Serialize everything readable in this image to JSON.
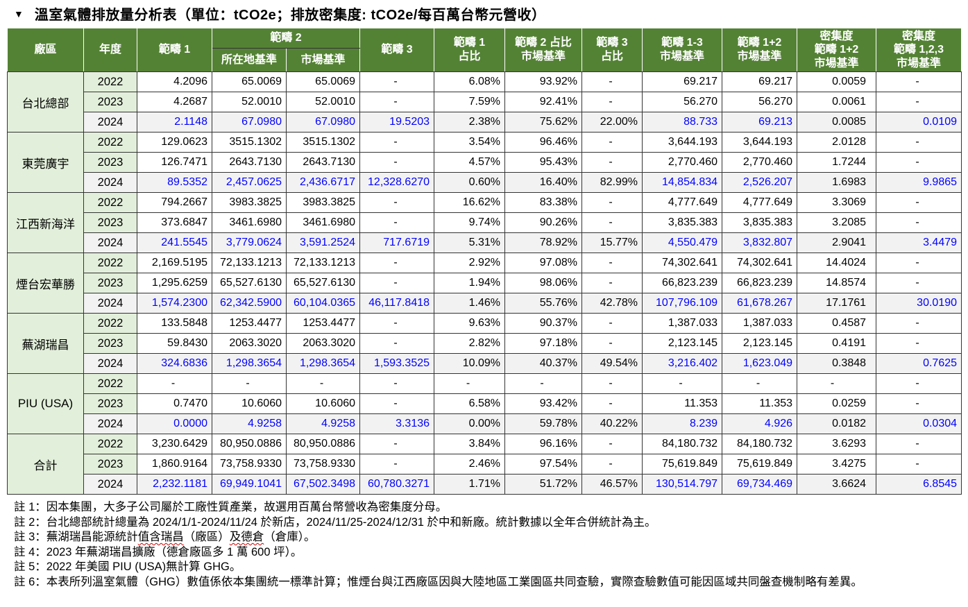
{
  "title": {
    "arrow": "▼",
    "text": "溫室氣體排放量分析表（單位：tCO2e；排放密集度: tCO2e/每百萬台幣元營收）"
  },
  "colors": {
    "header_bg": "#548235",
    "group_bg": "#e2efda",
    "highlight_row_bg": "#f2f2f2",
    "highlight_text": "#0000ff"
  },
  "table": {
    "headers": {
      "plant": "廠區",
      "year": "年度",
      "scope1": "範疇 1",
      "scope2": "範疇 2",
      "scope2_location": "所在地基準",
      "scope2_market": "市場基準",
      "scope3": "範疇 3",
      "scope1_pct": "範疇 1\n占比",
      "scope2_pct": "範疇 2 占比\n市場基準",
      "scope3_pct": "範疇 3\n占比",
      "scope1_3_market": "範疇 1-3\n市場基準",
      "scope1_2_market": "範疇 1+2\n市場基準",
      "intensity_1_2": "密集度\n範疇 1+2\n市場基準",
      "intensity_123": "密集度\n範疇 1,2,3\n市場基準"
    },
    "groups": [
      {
        "plant": "台北總部",
        "rows": [
          {
            "year": "2022",
            "scope1": "4.2096",
            "scope2_location": "65.0069",
            "scope2_market": "65.0069",
            "scope3": "-",
            "scope1_pct": "6.08%",
            "scope2_pct": "93.92%",
            "scope3_pct": "-",
            "scope1_3_market": "69.217",
            "scope1_2_market": "69.217",
            "intensity_1_2": "0.0059",
            "intensity_123": "-"
          },
          {
            "year": "2023",
            "scope1": "4.2687",
            "scope2_location": "52.0010",
            "scope2_market": "52.0010",
            "scope3": "-",
            "scope1_pct": "7.59%",
            "scope2_pct": "92.41%",
            "scope3_pct": "-",
            "scope1_3_market": "56.270",
            "scope1_2_market": "56.270",
            "intensity_1_2": "0.0061",
            "intensity_123": "-"
          },
          {
            "year": "2024",
            "scope1": "2.1148",
            "scope2_location": "67.0980",
            "scope2_market": "67.0980",
            "scope3": "19.5203",
            "scope1_pct": "2.38%",
            "scope2_pct": "75.62%",
            "scope3_pct": "22.00%",
            "scope1_3_market": "88.733",
            "scope1_2_market": "69.213",
            "intensity_1_2": "0.0085",
            "intensity_123": "0.0109"
          }
        ]
      },
      {
        "plant": "東莞廣宇",
        "rows": [
          {
            "year": "2022",
            "scope1": "129.0623",
            "scope2_location": "3515.1302",
            "scope2_market": "3515.1302",
            "scope3": "-",
            "scope1_pct": "3.54%",
            "scope2_pct": "96.46%",
            "scope3_pct": "-",
            "scope1_3_market": "3,644.193",
            "scope1_2_market": "3,644.193",
            "intensity_1_2": "2.0128",
            "intensity_123": "-"
          },
          {
            "year": "2023",
            "scope1": "126.7471",
            "scope2_location": "2643.7130",
            "scope2_market": "2643.7130",
            "scope3": "-",
            "scope1_pct": "4.57%",
            "scope2_pct": "95.43%",
            "scope3_pct": "-",
            "scope1_3_market": "2,770.460",
            "scope1_2_market": "2,770.460",
            "intensity_1_2": "1.7244",
            "intensity_123": "-"
          },
          {
            "year": "2024",
            "scope1": "89.5352",
            "scope2_location": "2,457.0625",
            "scope2_market": "2,436.6717",
            "scope3": "12,328.6270",
            "scope1_pct": "0.60%",
            "scope2_pct": "16.40%",
            "scope3_pct": "82.99%",
            "scope1_3_market": "14,854.834",
            "scope1_2_market": "2,526.207",
            "intensity_1_2": "1.6983",
            "intensity_123": "9.9865"
          }
        ]
      },
      {
        "plant": "江西新海洋",
        "rows": [
          {
            "year": "2022",
            "scope1": "794.2667",
            "scope2_location": "3983.3825",
            "scope2_market": "3983.3825",
            "scope3": "-",
            "scope1_pct": "16.62%",
            "scope2_pct": "83.38%",
            "scope3_pct": "-",
            "scope1_3_market": "4,777.649",
            "scope1_2_market": "4,777.649",
            "intensity_1_2": "3.3069",
            "intensity_123": "-"
          },
          {
            "year": "2023",
            "scope1": "373.6847",
            "scope2_location": "3461.6980",
            "scope2_market": "3461.6980",
            "scope3": "-",
            "scope1_pct": "9.74%",
            "scope2_pct": "90.26%",
            "scope3_pct": "-",
            "scope1_3_market": "3,835.383",
            "scope1_2_market": "3,835.383",
            "intensity_1_2": "3.2085",
            "intensity_123": "-"
          },
          {
            "year": "2024",
            "scope1": "241.5545",
            "scope2_location": "3,779.0624",
            "scope2_market": "3,591.2524",
            "scope3": "717.6719",
            "scope1_pct": "5.31%",
            "scope2_pct": "78.92%",
            "scope3_pct": "15.77%",
            "scope1_3_market": "4,550.479",
            "scope1_2_market": "3,832.807",
            "intensity_1_2": "2.9041",
            "intensity_123": "3.4479"
          }
        ]
      },
      {
        "plant": "煙台宏華勝",
        "rows": [
          {
            "year": "2022",
            "scope1": "2,169.5195",
            "scope2_location": "72,133.1213",
            "scope2_market": "72,133.1213",
            "scope3": "-",
            "scope1_pct": "2.92%",
            "scope2_pct": "97.08%",
            "scope3_pct": "-",
            "scope1_3_market": "74,302.641",
            "scope1_2_market": "74,302.641",
            "intensity_1_2": "14.4024",
            "intensity_123": "-"
          },
          {
            "year": "2023",
            "scope1": "1,295.6259",
            "scope2_location": "65,527.6130",
            "scope2_market": "65,527.6130",
            "scope3": "-",
            "scope1_pct": "1.94%",
            "scope2_pct": "98.06%",
            "scope3_pct": "-",
            "scope1_3_market": "66,823.239",
            "scope1_2_market": "66,823.239",
            "intensity_1_2": "14.8574",
            "intensity_123": "-"
          },
          {
            "year": "2024",
            "scope1": "1,574.2300",
            "scope2_location": "62,342.5900",
            "scope2_market": "60,104.0365",
            "scope3": "46,117.8418",
            "scope1_pct": "1.46%",
            "scope2_pct": "55.76%",
            "scope3_pct": "42.78%",
            "scope1_3_market": "107,796.109",
            "scope1_2_market": "61,678.267",
            "intensity_1_2": "17.1761",
            "intensity_123": "30.0190"
          }
        ]
      },
      {
        "plant": "蕪湖瑞昌",
        "rows": [
          {
            "year": "2022",
            "scope1": "133.5848",
            "scope2_location": "1253.4477",
            "scope2_market": "1253.4477",
            "scope3": "-",
            "scope1_pct": "9.63%",
            "scope2_pct": "90.37%",
            "scope3_pct": "-",
            "scope1_3_market": "1,387.033",
            "scope1_2_market": "1,387.033",
            "intensity_1_2": "0.4587",
            "intensity_123": "-"
          },
          {
            "year": "2023",
            "scope1": "59.8430",
            "scope2_location": "2063.3020",
            "scope2_market": "2063.3020",
            "scope3": "-",
            "scope1_pct": "2.82%",
            "scope2_pct": "97.18%",
            "scope3_pct": "-",
            "scope1_3_market": "2,123.145",
            "scope1_2_market": "2,123.145",
            "intensity_1_2": "0.4191",
            "intensity_123": "-"
          },
          {
            "year": "2024",
            "scope1": "324.6836",
            "scope2_location": "1,298.3654",
            "scope2_market": "1,298.3654",
            "scope3": "1,593.3525",
            "scope1_pct": "10.09%",
            "scope2_pct": "40.37%",
            "scope3_pct": "49.54%",
            "scope1_3_market": "3,216.402",
            "scope1_2_market": "1,623.049",
            "intensity_1_2": "0.3848",
            "intensity_123": "0.7625"
          }
        ]
      },
      {
        "plant": "PIU (USA)",
        "rows": [
          {
            "year": "2022",
            "scope1": "-",
            "scope2_location": "-",
            "scope2_market": "-",
            "scope3": "-",
            "scope1_pct": "-",
            "scope2_pct": "-",
            "scope3_pct": "-",
            "scope1_3_market": "-",
            "scope1_2_market": "-",
            "intensity_1_2": "-",
            "intensity_123": "-"
          },
          {
            "year": "2023",
            "scope1": "0.7470",
            "scope2_location": "10.6060",
            "scope2_market": "10.6060",
            "scope3": "-",
            "scope1_pct": "6.58%",
            "scope2_pct": "93.42%",
            "scope3_pct": "-",
            "scope1_3_market": "11.353",
            "scope1_2_market": "11.353",
            "intensity_1_2": "0.0259",
            "intensity_123": "-"
          },
          {
            "year": "2024",
            "scope1": "0.0000",
            "scope2_location": "4.9258",
            "scope2_market": "4.9258",
            "scope3": "3.3136",
            "scope1_pct": "0.00%",
            "scope2_pct": "59.78%",
            "scope3_pct": "40.22%",
            "scope1_3_market": "8.239",
            "scope1_2_market": "4.926",
            "intensity_1_2": "0.0182",
            "intensity_123": "0.0304"
          }
        ]
      },
      {
        "plant": "合計",
        "rows": [
          {
            "year": "2022",
            "scope1": "3,230.6429",
            "scope2_location": "80,950.0886",
            "scope2_market": "80,950.0886",
            "scope3": "-",
            "scope1_pct": "3.84%",
            "scope2_pct": "96.16%",
            "scope3_pct": "-",
            "scope1_3_market": "84,180.732",
            "scope1_2_market": "84,180.732",
            "intensity_1_2": "3.6293",
            "intensity_123": "-"
          },
          {
            "year": "2023",
            "scope1": "1,860.9164",
            "scope2_location": "73,758.9330",
            "scope2_market": "73,758.9330",
            "scope3": "-",
            "scope1_pct": "2.46%",
            "scope2_pct": "97.54%",
            "scope3_pct": "-",
            "scope1_3_market": "75,619.849",
            "scope1_2_market": "75,619.849",
            "intensity_1_2": "3.4275",
            "intensity_123": "-"
          },
          {
            "year": "2024",
            "scope1": "2,232.1181",
            "scope2_location": "69,949.1041",
            "scope2_market": "67,502.3498",
            "scope3": "60,780.3271",
            "scope1_pct": "1.71%",
            "scope2_pct": "51.72%",
            "scope3_pct": "46.57%",
            "scope1_3_market": "130,514.797",
            "scope1_2_market": "69,734.469",
            "intensity_1_2": "3.6624",
            "intensity_123": "6.8545"
          }
        ]
      }
    ]
  },
  "notes": [
    {
      "label": "註 1：",
      "text": "因本集團，大多子公司屬於工廠性質產業，故選用百萬台幣營收為密集度分母。"
    },
    {
      "label": "註 2：",
      "text": "台北總部統計總量為 2024/1/1-2024/11/24 於新店，2024/11/25-2024/12/31 於中和新廠。統計數據以全年合併統計為主。"
    },
    {
      "label": "註 3：",
      "text_before": "蕪湖瑞昌能源統計",
      "underline1": "值含瑞昌",
      "text_mid": "（廠區）",
      "underline2": "及德倉",
      "text_after": "（倉庫）。"
    },
    {
      "label": "註 4：",
      "text": "2023 年蕪湖瑞昌擴廠（德倉廠區多 1 萬 600 坪）。"
    },
    {
      "label": "註 5：",
      "text": "2022 年美國 PIU (USA)無計算 GHG。"
    },
    {
      "label": "註 6：",
      "text": "本表所列溫室氣體（GHG）數值係依本集團統一標準計算；惟煙台與江西廠區因與大陸地區工業園區共同查驗，實際查驗數值可能因區域共同盤查機制略有差異。"
    }
  ]
}
